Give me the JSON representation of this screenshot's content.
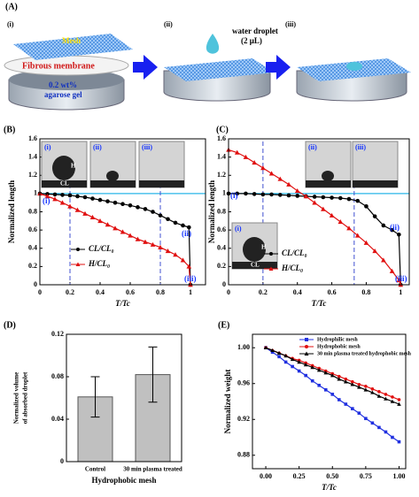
{
  "schematic": {
    "panel": "(A)",
    "steps": [
      "(i)",
      "(ii)",
      "(iii)"
    ],
    "mesh": "Mesh",
    "membrane": "Fibrous membrane",
    "gel": [
      "0.2 wt%",
      "agarose gel"
    ],
    "droplet": [
      "water droplet",
      "(2 μL)"
    ]
  },
  "chart_data": [
    {
      "type": "line",
      "panel": "(B)",
      "ylabel": "Normalized length",
      "xlabel": "T/Tc",
      "xlim": [
        0,
        1.1
      ],
      "ylim": [
        0,
        1.6
      ],
      "xticks": [
        0,
        0.2,
        0.4,
        0.6,
        0.8,
        1
      ],
      "yticks": [
        0,
        0.2,
        0.4,
        0.6,
        0.8,
        1,
        1.2,
        1.4,
        1.6
      ],
      "reference_line": 1,
      "vlines": [
        0.2,
        0.8
      ],
      "insets": [
        "(i)",
        "(ii)",
        "(iii)"
      ],
      "inset_labels": [
        "H",
        "CL"
      ],
      "annotations": [
        "(i)",
        "(ii)",
        "(iii)"
      ],
      "x": [
        0,
        0.05,
        0.1,
        0.15,
        0.2,
        0.25,
        0.3,
        0.35,
        0.4,
        0.45,
        0.5,
        0.55,
        0.6,
        0.65,
        0.7,
        0.75,
        0.8,
        0.85,
        0.9,
        0.95,
        0.99,
        1
      ],
      "series": [
        {
          "name": "CL/CL₀",
          "color": "#000000",
          "marker": "circle",
          "values": [
            1,
            0.995,
            0.99,
            0.985,
            0.98,
            0.97,
            0.96,
            0.945,
            0.93,
            0.915,
            0.9,
            0.885,
            0.87,
            0.85,
            0.83,
            0.8,
            0.76,
            0.72,
            0.68,
            0.65,
            0.63,
            0
          ]
        },
        {
          "name": "H/CL₀",
          "color": "#e01010",
          "marker": "triangle",
          "values": [
            1,
            0.97,
            0.94,
            0.9,
            0.86,
            0.82,
            0.78,
            0.74,
            0.7,
            0.66,
            0.62,
            0.58,
            0.54,
            0.5,
            0.47,
            0.44,
            0.41,
            0.37,
            0.33,
            0.27,
            0.2,
            0
          ]
        }
      ]
    },
    {
      "type": "line",
      "panel": "(C)",
      "ylabel": "Normalized length",
      "xlabel": "T/Tc",
      "xlim": [
        0,
        1.05
      ],
      "ylim": [
        0,
        1.6
      ],
      "xticks": [
        0,
        0.2,
        0.4,
        0.6,
        0.8,
        1
      ],
      "yticks": [
        0,
        0.2,
        0.4,
        0.6,
        0.8,
        1,
        1.2,
        1.4,
        1.6
      ],
      "reference_line": 1,
      "vlines": [
        0.2,
        0.73
      ],
      "insets": [
        "(i)",
        "(ii)",
        "(iii)"
      ],
      "inset_labels": [
        "H",
        "CL"
      ],
      "annotations": [
        "(i)",
        "(ii)",
        "(iii)"
      ],
      "x": [
        0,
        0.05,
        0.1,
        0.15,
        0.2,
        0.25,
        0.3,
        0.35,
        0.4,
        0.45,
        0.5,
        0.55,
        0.6,
        0.65,
        0.7,
        0.75,
        0.8,
        0.85,
        0.9,
        0.95,
        0.99,
        1
      ],
      "series": [
        {
          "name": "CL/CL₀",
          "color": "#000000",
          "marker": "circle",
          "values": [
            1,
            1,
            1,
            0.995,
            0.99,
            0.99,
            0.985,
            0.98,
            0.975,
            0.97,
            0.965,
            0.96,
            0.955,
            0.95,
            0.94,
            0.92,
            0.86,
            0.75,
            0.65,
            0.6,
            0.55,
            0
          ]
        },
        {
          "name": "H/CL₀",
          "color": "#e01010",
          "marker": "triangle",
          "values": [
            1.48,
            1.45,
            1.4,
            1.34,
            1.28,
            1.22,
            1.16,
            1.1,
            1.03,
            0.97,
            0.9,
            0.83,
            0.76,
            0.69,
            0.62,
            0.54,
            0.46,
            0.37,
            0.27,
            0.15,
            0.05,
            0
          ]
        }
      ]
    },
    {
      "type": "bar",
      "panel": "(D)",
      "ylabel": [
        "Normalized volume",
        "of absorbed droplet"
      ],
      "xlabel": "Hydrophobic mesh",
      "ylim": [
        0,
        0.12
      ],
      "yticks": [
        0,
        0.04,
        0.08,
        0.12
      ],
      "categories": [
        "Control",
        "30 min plasma treated"
      ],
      "values": [
        0.061,
        0.082
      ],
      "errors": [
        0.019,
        0.026
      ],
      "color": "#c0c0c0"
    },
    {
      "type": "line",
      "panel": "(E)",
      "ylabel": "Normalized weight",
      "xlabel": "T/Tc",
      "xlim": [
        -0.1,
        1.05
      ],
      "ylim": [
        0.865,
        1.015
      ],
      "xticks": [
        {
          "value": 0,
          "label": "0.00"
        },
        {
          "value": 0.25,
          "label": "0.25"
        },
        {
          "value": 0.5,
          "label": "0.50"
        },
        {
          "value": 0.75,
          "label": "0.75"
        },
        {
          "value": 1,
          "label": "1.00"
        }
      ],
      "yticks": [
        0.88,
        0.92,
        0.96,
        {
          "value": 1,
          "label": "1.00"
        }
      ],
      "x": [
        0,
        0.05,
        0.1,
        0.15,
        0.2,
        0.25,
        0.3,
        0.35,
        0.4,
        0.45,
        0.5,
        0.55,
        0.6,
        0.65,
        0.7,
        0.75,
        0.8,
        0.85,
        0.9,
        0.95,
        1
      ],
      "series": [
        {
          "name": "Hydrophilic mesh",
          "color": "#2030e0",
          "marker": "square",
          "values": [
            1,
            0.995,
            0.99,
            0.984,
            0.979,
            0.974,
            0.969,
            0.963,
            0.958,
            0.953,
            0.948,
            0.942,
            0.937,
            0.932,
            0.927,
            0.921,
            0.916,
            0.911,
            0.906,
            0.9,
            0.895
          ]
        },
        {
          "name": "Hydrophobic mesh",
          "color": "#e01010",
          "marker": "circle",
          "values": [
            1,
            0.997,
            0.994,
            0.991,
            0.988,
            0.986,
            0.983,
            0.98,
            0.977,
            0.974,
            0.971,
            0.968,
            0.965,
            0.962,
            0.959,
            0.957,
            0.954,
            0.951,
            0.948,
            0.945,
            0.942
          ]
        },
        {
          "name": "30 min plasma treated hydrophobic mesh",
          "color": "#000000",
          "marker": "triangle",
          "values": [
            1,
            0.997,
            0.994,
            0.991,
            0.987,
            0.984,
            0.981,
            0.978,
            0.975,
            0.972,
            0.969,
            0.965,
            0.962,
            0.959,
            0.956,
            0.953,
            0.95,
            0.946,
            0.943,
            0.94,
            0.937
          ]
        }
      ]
    }
  ]
}
